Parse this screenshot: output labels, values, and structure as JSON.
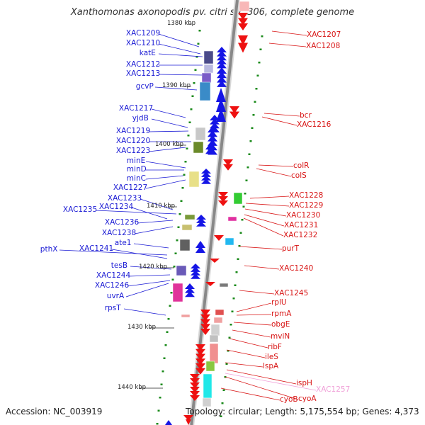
{
  "title": "Xanthomonas axonopodis pv. citri str. 306, complete genome",
  "footer": {
    "accession": "Accession: NC_003919",
    "stats": "Topology: circular; Length: 5,175,554 bp; Genes: 4,373"
  },
  "colors": {
    "forward": "#1515e6",
    "reverse": "#ee1111",
    "label_left": "#1a1ad4",
    "label_right": "#d81414",
    "backbone": "#888888",
    "tick": "#1a8a1a",
    "faded_label": "#f0a0d8"
  },
  "scale_marks": [
    {
      "label": "1380 kbp"
    },
    {
      "label": "1390 kbp"
    },
    {
      "label": "1400 kbp"
    },
    {
      "label": "1410 kbp"
    },
    {
      "label": "1420 kbp"
    },
    {
      "label": "1430 kbp"
    },
    {
      "label": "1440 kbp"
    }
  ],
  "left_genes": [
    "XAC1209",
    "XAC1210",
    "katE",
    "XAC1212",
    "XAC1213",
    "gcvP",
    "XAC1217",
    "yjdB",
    "XAC1219",
    "XAC1220",
    "XAC1223",
    "minE",
    "minD",
    "minC",
    "XAC1227",
    "XAC1233",
    "XAC1234",
    "XAC1235",
    "XAC1236",
    "XAC1238",
    "ate1",
    "pthX",
    "XAC1241",
    "tesB",
    "XAC1244",
    "XAC1246",
    "uvrA",
    "rpsT"
  ],
  "right_genes": [
    "XAC1207",
    "XAC1208",
    "bcr",
    "XAC1216",
    "colR",
    "colS",
    "XAC1228",
    "XAC1229",
    "XAC1230",
    "XAC1231",
    "XAC1232",
    "purT",
    "XAC1240",
    "XAC1245",
    "rplU",
    "rpmA",
    "obgE",
    "mviN",
    "ribF",
    "ileS",
    "lspA",
    "ispH",
    "XAC1257",
    "cyoA",
    "cyoB"
  ]
}
